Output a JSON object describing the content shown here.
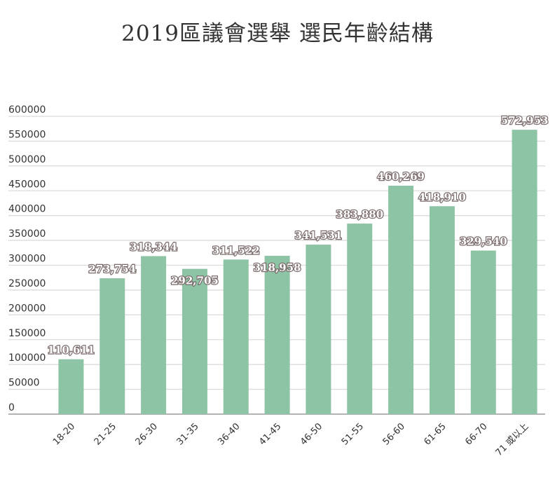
{
  "chart_data": {
    "type": "bar",
    "title": "2019區議會選舉  選民年齡結構",
    "xlabel": "",
    "ylabel": "",
    "categories": [
      "18-20",
      "21-25",
      "26-30",
      "31-35",
      "36-40",
      "41-45",
      "46-50",
      "51-55",
      "56-60",
      "61-65",
      "66-70",
      "71 或以上"
    ],
    "values": [
      110611,
      273754,
      318344,
      292705,
      311522,
      318958,
      341531,
      383880,
      460269,
      418910,
      329540,
      572953
    ],
    "data_labels": [
      "110,611",
      "273,754",
      "318,344",
      "292,705",
      "311,522",
      "318,958",
      "341,531",
      "383,880",
      "460,269",
      "418,910",
      "329,540",
      "572,953"
    ],
    "ylim": [
      0,
      600000
    ],
    "yticks": [
      0,
      50000,
      100000,
      150000,
      200000,
      250000,
      300000,
      350000,
      400000,
      450000,
      500000,
      550000,
      600000
    ],
    "ytick_labels": [
      "0",
      "50000",
      "100000",
      "150000",
      "200000",
      "250000",
      "300000",
      "350000",
      "400000",
      "450000",
      "500000",
      "550000",
      "600000"
    ],
    "grid": true,
    "legend": "none",
    "colors": {
      "bar": "#8cc4a5",
      "grid": "#dcdcdc",
      "axis": "#9a9a9a",
      "label_fill": "#ffffff",
      "label_outline": "#7a6a6a"
    }
  }
}
